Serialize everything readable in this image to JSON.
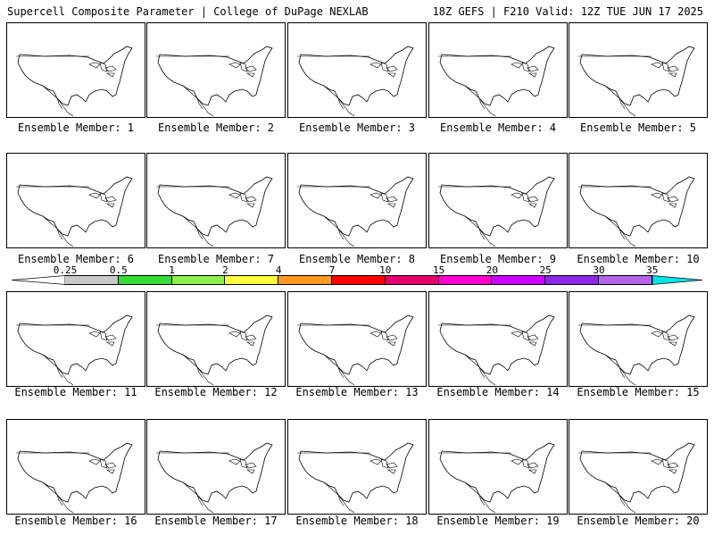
{
  "header": {
    "left": "Supercell Composite Parameter | College of DuPage NEXLAB",
    "right": "18Z GEFS | F210 Valid: 12Z TUE JUN 17 2025"
  },
  "colorbar": {
    "labels": [
      "0.25",
      "0.5",
      "1",
      "2",
      "4",
      "7",
      "10",
      "15",
      "20",
      "25",
      "30",
      "35"
    ],
    "colors": [
      "#c8c8c8",
      "#34dc34",
      "#8cf04c",
      "#ffff3c",
      "#ff9a1e",
      "#ff0000",
      "#e6006e",
      "#ff00d0",
      "#cc00ff",
      "#8c28e6",
      "#b464e6",
      "#00e6e6"
    ]
  },
  "members": [
    {
      "label": "Ensemble Member: 1"
    },
    {
      "label": "Ensemble Member: 2"
    },
    {
      "label": "Ensemble Member: 3"
    },
    {
      "label": "Ensemble Member: 4"
    },
    {
      "label": "Ensemble Member: 5"
    },
    {
      "label": "Ensemble Member: 6"
    },
    {
      "label": "Ensemble Member: 7"
    },
    {
      "label": "Ensemble Member: 8"
    },
    {
      "label": "Ensemble Member: 9"
    },
    {
      "label": "Ensemble Member: 10"
    },
    {
      "label": "Ensemble Member: 11"
    },
    {
      "label": "Ensemble Member: 12"
    },
    {
      "label": "Ensemble Member: 13"
    },
    {
      "label": "Ensemble Member: 14"
    },
    {
      "label": "Ensemble Member: 15"
    },
    {
      "label": "Ensemble Member: 16"
    },
    {
      "label": "Ensemble Member: 17"
    },
    {
      "label": "Ensemble Member: 18"
    },
    {
      "label": "Ensemble Member: 19"
    },
    {
      "label": "Ensemble Member: 20"
    }
  ]
}
